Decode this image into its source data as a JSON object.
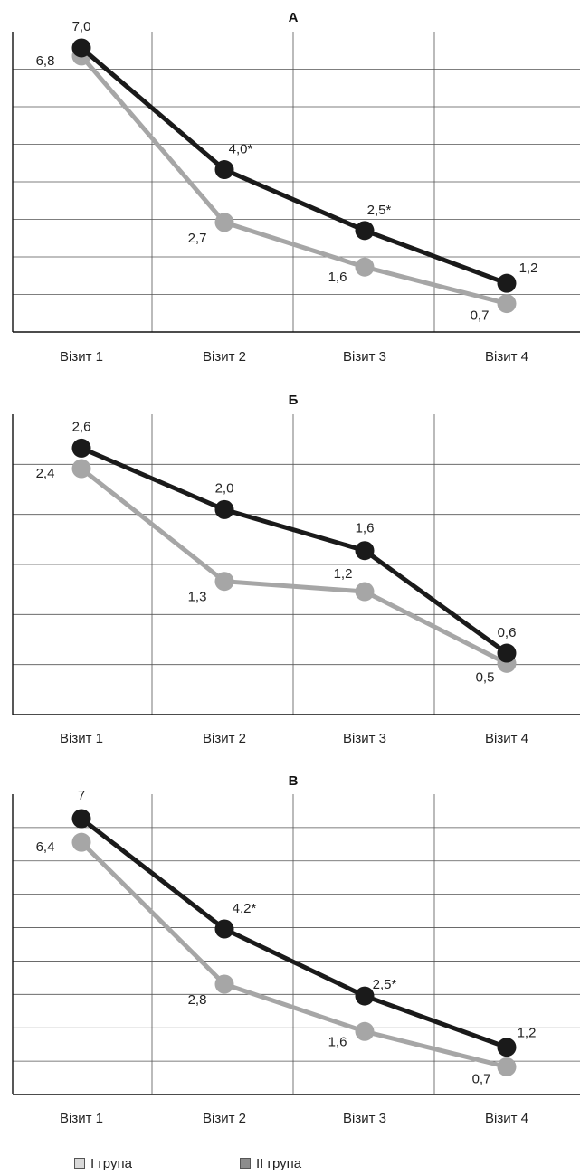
{
  "chart_data": [
    {
      "type": "line",
      "title": "А",
      "categories": [
        "Візит 1",
        "Візит 2",
        "Візит 3",
        "Візит 4"
      ],
      "ylim": [
        0,
        7.4
      ],
      "series": [
        {
          "values": [
            7.0,
            4.0,
            2.5,
            1.2
          ],
          "labels": [
            "7,0",
            "4,0*",
            "2,5*",
            "1,2"
          ],
          "color": "#1a1a1a"
        },
        {
          "values": [
            6.8,
            2.7,
            1.6,
            0.7
          ],
          "labels": [
            "6,8",
            "2,7",
            "1,6",
            "0,7"
          ],
          "color": "#a6a6a6"
        }
      ]
    },
    {
      "type": "line",
      "title": "Б",
      "categories": [
        "Візит 1",
        "Візит 2",
        "Візит 3",
        "Візит 4"
      ],
      "ylim": [
        0,
        2.93
      ],
      "series": [
        {
          "values": [
            2.6,
            2.0,
            1.6,
            0.6
          ],
          "labels": [
            "2,6",
            "2,0",
            "1,6",
            "0,6"
          ],
          "color": "#1a1a1a"
        },
        {
          "values": [
            2.4,
            1.3,
            1.2,
            0.5
          ],
          "labels": [
            "2,4",
            "1,3",
            "1,2",
            "0,5"
          ],
          "color": "#a6a6a6"
        }
      ]
    },
    {
      "type": "line",
      "title": "В",
      "categories": [
        "Візит 1",
        "Візит 2",
        "Візит 3",
        "Візит 4"
      ],
      "ylim": [
        0,
        7.62
      ],
      "series": [
        {
          "values": [
            7.0,
            4.2,
            2.5,
            1.2
          ],
          "labels": [
            "7",
            "4,2*",
            "2,5*",
            "1,2"
          ],
          "color": "#1a1a1a"
        },
        {
          "values": [
            6.4,
            2.8,
            1.6,
            0.7
          ],
          "labels": [
            "6,4",
            "2,8",
            "1,6",
            "0,7"
          ],
          "color": "#a6a6a6"
        }
      ]
    }
  ],
  "legend": [
    {
      "label": "І група",
      "color": "#d9d9d9"
    },
    {
      "label": "ІІ група",
      "color": "#8c8c8c"
    }
  ]
}
